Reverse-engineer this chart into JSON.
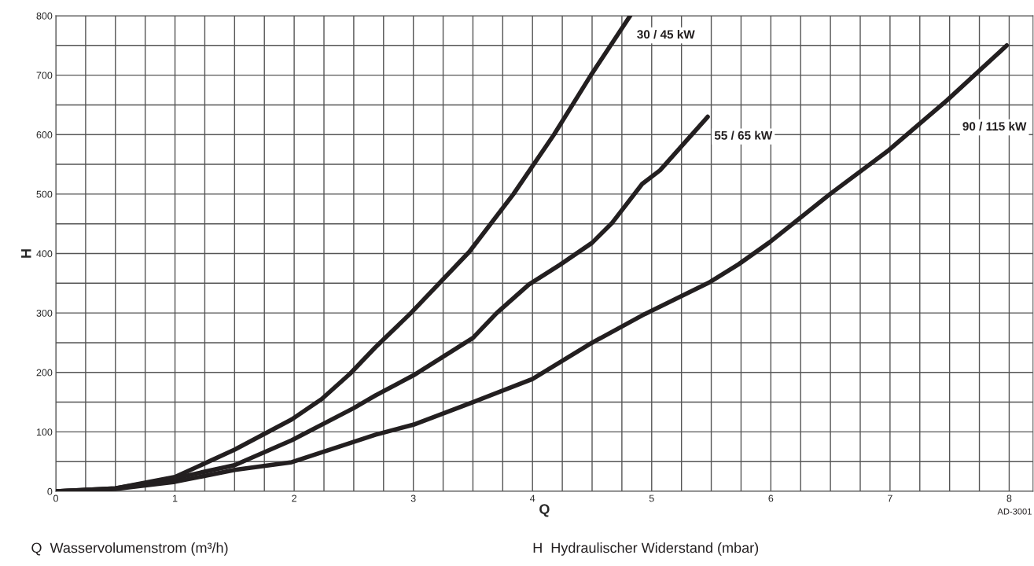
{
  "chart_data": {
    "type": "line",
    "xlabel": "Q",
    "ylabel": "H",
    "xlim": [
      0,
      8.2
    ],
    "ylim": [
      0,
      800
    ],
    "xticks": [
      0,
      {
        "value": 0.25,
        "label": null
      },
      {
        "value": 0.5,
        "label": null
      },
      {
        "value": 0.75,
        "label": null
      },
      1,
      {
        "value": 1.25,
        "label": null
      },
      {
        "value": 1.5,
        "label": null
      },
      {
        "value": 1.75,
        "label": null
      },
      2,
      {
        "value": 2.25,
        "label": null
      },
      {
        "value": 2.5,
        "label": null
      },
      {
        "value": 2.75,
        "label": null
      },
      3,
      {
        "value": 3.25,
        "label": null
      },
      {
        "value": 3.5,
        "label": null
      },
      {
        "value": 3.75,
        "label": null
      },
      4,
      {
        "value": 4.25,
        "label": null
      },
      {
        "value": 4.5,
        "label": null
      },
      {
        "value": 4.75,
        "label": null
      },
      5,
      {
        "value": 5.25,
        "label": null
      },
      {
        "value": 5.5,
        "label": null
      },
      {
        "value": 5.75,
        "label": null
      },
      6,
      {
        "value": 6.25,
        "label": null
      },
      {
        "value": 6.5,
        "label": null
      },
      {
        "value": 6.75,
        "label": null
      },
      7,
      {
        "value": 7.25,
        "label": null
      },
      {
        "value": 7.5,
        "label": null
      },
      {
        "value": 7.75,
        "label": null
      },
      8
    ],
    "yticks": [
      0,
      {
        "value": 50,
        "label": null
      },
      100,
      {
        "value": 150,
        "label": null
      },
      200,
      {
        "value": 250,
        "label": null
      },
      300,
      {
        "value": 350,
        "label": null
      },
      400,
      {
        "value": 450,
        "label": null
      },
      500,
      {
        "value": 550,
        "label": null
      },
      600,
      {
        "value": 650,
        "label": null
      },
      700,
      {
        "value": 750,
        "label": null
      },
      800
    ],
    "grid": true,
    "legend": false,
    "marker": "none",
    "line_style": "solid",
    "series": [
      {
        "name": "30 / 45 kW",
        "color": "#231f20",
        "x": [
          0,
          0.5,
          1,
          1.5,
          1.98,
          2.23,
          2.47,
          2.68,
          2.98,
          3.47,
          3.84,
          4.18,
          4.49,
          4.82
        ],
        "values": [
          0,
          5,
          24,
          70,
          121,
          155,
          198,
          242,
          300,
          403,
          500,
          600,
          700,
          800
        ]
      },
      {
        "name": "55 / 65 kW",
        "color": "#231f20",
        "x": [
          0,
          0.5,
          1,
          1.5,
          1.98,
          2.5,
          2.68,
          3,
          3.5,
          3.7,
          3.97,
          4.23,
          4.5,
          4.67,
          4.92,
          5.07,
          5.47
        ],
        "values": [
          0,
          5,
          22,
          44,
          86,
          140,
          161,
          195,
          258,
          300,
          348,
          381,
          418,
          452,
          517,
          540,
          630
        ]
      },
      {
        "name": "90 / 115 kW",
        "color": "#231f20",
        "x": [
          0,
          0.5,
          1,
          1.5,
          1.98,
          2.68,
          3,
          3.5,
          4,
          4.5,
          4.94,
          5.48,
          5.73,
          5.99,
          6.49,
          6.99,
          7.48,
          7.98
        ],
        "values": [
          0,
          4,
          16,
          36,
          49,
          95,
          112,
          150,
          189,
          250,
          298,
          351,
          382,
          419,
          499,
          574,
          658,
          750
        ]
      }
    ],
    "annotations": [
      "AD-3001",
      "Q  Wasservolumenstrom (m³/h)",
      "H  Hydraulischer Widerstand (mbar)"
    ]
  }
}
